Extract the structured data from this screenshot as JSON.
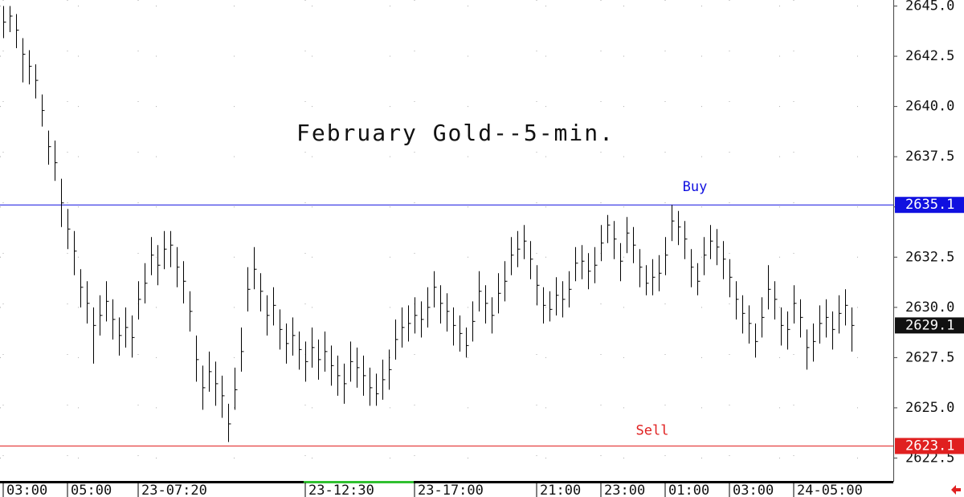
{
  "chart_data": {
    "type": "ohlc",
    "title": "February Gold--5-min.",
    "color": "#000000",
    "categories": [
      "03:00",
      null,
      null,
      null,
      null,
      null,
      null,
      null,
      null,
      null,
      "05:00",
      null,
      null,
      null,
      null,
      null,
      null,
      null,
      null,
      null,
      null,
      "23-07:20",
      null,
      null,
      null,
      null,
      null,
      null,
      null,
      null,
      null,
      null,
      null,
      null,
      null,
      null,
      null,
      null,
      null,
      null,
      null,
      null,
      null,
      null,
      null,
      null,
      null,
      "23-12:30",
      null,
      null,
      null,
      null,
      null,
      null,
      null,
      null,
      null,
      null,
      null,
      null,
      null,
      null,
      null,
      null,
      "23-17:00",
      null,
      null,
      null,
      null,
      null,
      null,
      null,
      null,
      null,
      null,
      null,
      null,
      null,
      null,
      null,
      null,
      null,
      null,
      "21:00",
      null,
      null,
      null,
      null,
      null,
      null,
      null,
      null,
      null,
      "23:00",
      null,
      null,
      null,
      null,
      null,
      null,
      null,
      null,
      null,
      "01:00",
      null,
      null,
      null,
      null,
      null,
      null,
      null,
      null,
      null,
      "03:00",
      null,
      null,
      null,
      null,
      null,
      null,
      null,
      null,
      null,
      "24-05:00",
      null,
      null,
      null,
      null,
      null,
      null,
      null,
      null,
      null
    ],
    "high": [
      2645.0,
      2645.0,
      2644.6,
      2643.4,
      2642.8,
      2642.1,
      2640.6,
      2638.8,
      2638.3,
      2636.4,
      2634.9,
      2633.8,
      2631.9,
      2631.3,
      2630.0,
      2630.6,
      2631.3,
      2630.4,
      2629.5,
      2630.0,
      2629.6,
      2631.3,
      2632.2,
      2633.5,
      2633.1,
      2633.8,
      2633.8,
      2633.0,
      2632.3,
      2630.8,
      2628.6,
      2627.1,
      2627.8,
      2627.3,
      2626.6,
      2625.2,
      2627.0,
      2629.0,
      2632.0,
      2633.0,
      2631.7,
      2630.6,
      2631.0,
      2629.9,
      2629.2,
      2629.5,
      2628.8,
      2628.3,
      2629.0,
      2628.4,
      2628.8,
      2628.1,
      2627.6,
      2627.2,
      2628.3,
      2628.0,
      2627.6,
      2627.0,
      2626.7,
      2627.4,
      2627.9,
      2629.4,
      2630.0,
      2630.1,
      2630.5,
      2630.3,
      2631.0,
      2631.8,
      2631.1,
      2630.7,
      2630.0,
      2629.6,
      2629.0,
      2630.3,
      2631.8,
      2631.1,
      2630.5,
      2631.7,
      2632.3,
      2633.5,
      2633.8,
      2634.1,
      2633.3,
      2632.1,
      2631.0,
      2630.8,
      2631.5,
      2631.3,
      2631.8,
      2633.0,
      2633.1,
      2632.7,
      2633.0,
      2634.1,
      2634.6,
      2634.3,
      2633.2,
      2634.5,
      2634.0,
      2632.9,
      2632.1,
      2632.4,
      2632.6,
      2633.5,
      2635.1,
      2634.8,
      2634.3,
      2632.9,
      2632.2,
      2633.5,
      2634.1,
      2633.9,
      2633.3,
      2632.4,
      2631.3,
      2630.6,
      2630.1,
      2629.2,
      2630.5,
      2632.1,
      2631.3,
      2630.0,
      2629.8,
      2631.1,
      2630.4,
      2628.9,
      2629.2,
      2630.1,
      2630.4,
      2629.8,
      2630.6,
      2630.9,
      2630.0
    ],
    "low": [
      2643.4,
      2643.7,
      2642.9,
      2641.2,
      2641.1,
      2640.4,
      2639.0,
      2637.1,
      2636.3,
      2634.0,
      2632.9,
      2631.6,
      2630.0,
      2629.2,
      2627.2,
      2628.6,
      2629.3,
      2628.4,
      2627.6,
      2628.0,
      2627.5,
      2629.4,
      2630.2,
      2631.6,
      2631.1,
      2631.9,
      2632.0,
      2631.0,
      2630.2,
      2628.8,
      2626.3,
      2624.9,
      2625.8,
      2625.1,
      2624.5,
      2623.3,
      2624.9,
      2626.8,
      2629.8,
      2630.9,
      2629.8,
      2628.6,
      2629.1,
      2627.9,
      2627.2,
      2627.6,
      2626.9,
      2626.3,
      2627.0,
      2626.4,
      2626.8,
      2626.1,
      2625.6,
      2625.2,
      2626.3,
      2626.0,
      2625.6,
      2625.1,
      2625.1,
      2625.4,
      2625.9,
      2627.4,
      2628.0,
      2628.3,
      2628.7,
      2628.5,
      2629.0,
      2630.0,
      2629.2,
      2628.8,
      2628.1,
      2627.8,
      2627.5,
      2628.3,
      2629.8,
      2629.2,
      2628.7,
      2629.7,
      2630.3,
      2631.6,
      2632.0,
      2632.4,
      2631.4,
      2630.1,
      2629.2,
      2629.3,
      2629.6,
      2629.5,
      2630.0,
      2631.3,
      2631.4,
      2630.9,
      2631.2,
      2632.3,
      2633.2,
      2632.4,
      2631.3,
      2632.7,
      2632.2,
      2631.0,
      2630.6,
      2630.6,
      2630.8,
      2631.6,
      2633.3,
      2633.1,
      2632.4,
      2631.0,
      2630.6,
      2631.6,
      2632.4,
      2632.1,
      2631.4,
      2630.5,
      2629.4,
      2628.7,
      2628.2,
      2627.5,
      2628.5,
      2629.9,
      2629.4,
      2628.1,
      2627.9,
      2629.2,
      2628.5,
      2626.9,
      2627.3,
      2628.2,
      2628.5,
      2627.9,
      2628.7,
      2629.1,
      2627.8
    ],
    "close": [
      2644.2,
      2644.5,
      2643.8,
      2642.6,
      2642.0,
      2641.3,
      2639.8,
      2638.0,
      2637.2,
      2635.2,
      2633.9,
      2632.8,
      2631.0,
      2630.2,
      2629.1,
      2629.6,
      2630.3,
      2629.4,
      2628.6,
      2629.0,
      2628.5,
      2630.4,
      2631.2,
      2632.6,
      2632.1,
      2632.9,
      2633.1,
      2632.0,
      2631.3,
      2629.8,
      2627.4,
      2626.0,
      2626.8,
      2626.2,
      2625.6,
      2624.2,
      2625.9,
      2627.8,
      2630.9,
      2631.9,
      2630.8,
      2629.6,
      2630.1,
      2628.9,
      2628.2,
      2628.6,
      2627.9,
      2627.3,
      2628.0,
      2627.4,
      2627.8,
      2627.1,
      2626.6,
      2626.2,
      2627.3,
      2627.0,
      2626.6,
      2626.0,
      2625.7,
      2626.4,
      2626.9,
      2628.4,
      2629.0,
      2629.2,
      2629.6,
      2629.4,
      2630.0,
      2631.0,
      2630.2,
      2629.8,
      2629.1,
      2628.7,
      2628.1,
      2629.3,
      2630.8,
      2630.2,
      2629.6,
      2630.7,
      2631.3,
      2632.6,
      2632.9,
      2633.3,
      2632.4,
      2631.1,
      2630.1,
      2629.9,
      2630.6,
      2630.4,
      2630.9,
      2632.2,
      2632.3,
      2631.8,
      2632.1,
      2633.2,
      2634.1,
      2633.4,
      2632.3,
      2633.7,
      2633.1,
      2632.0,
      2631.2,
      2631.5,
      2631.7,
      2632.6,
      2634.3,
      2634.0,
      2633.4,
      2632.0,
      2631.3,
      2632.6,
      2633.3,
      2633.0,
      2632.4,
      2631.5,
      2630.4,
      2629.7,
      2629.2,
      2628.3,
      2629.5,
      2630.9,
      2630.4,
      2629.1,
      2628.9,
      2630.2,
      2629.5,
      2628.0,
      2628.3,
      2629.2,
      2629.5,
      2628.9,
      2629.7,
      2630.1,
      2629.1
    ],
    "ylim": [
      2621.32,
      2645.3
    ],
    "yticks": [
      {
        "value": 2622.5,
        "label": "2622.5"
      },
      {
        "value": 2625,
        "label": "2625.0"
      },
      {
        "value": 2627.5,
        "label": "2627.5"
      },
      {
        "value": 2630,
        "label": "2630.0"
      },
      {
        "value": 2632.5,
        "label": "2632.5"
      },
      {
        "value": 2635,
        "label": "2635.0"
      },
      {
        "value": 2637.5,
        "label": "2637.5"
      },
      {
        "value": 2640,
        "label": "2640.0"
      },
      {
        "value": 2642.5,
        "label": "2642.5"
      },
      {
        "value": 2645,
        "label": "2645.0"
      }
    ],
    "grid": true,
    "levels": [
      {
        "value": 2635.1,
        "label": "Buy",
        "color": "#1010e0"
      },
      {
        "value": 2623.1,
        "label": "Sell",
        "color": "#e02020"
      }
    ],
    "last": {
      "value": 2629.1,
      "color": "#111111"
    }
  }
}
